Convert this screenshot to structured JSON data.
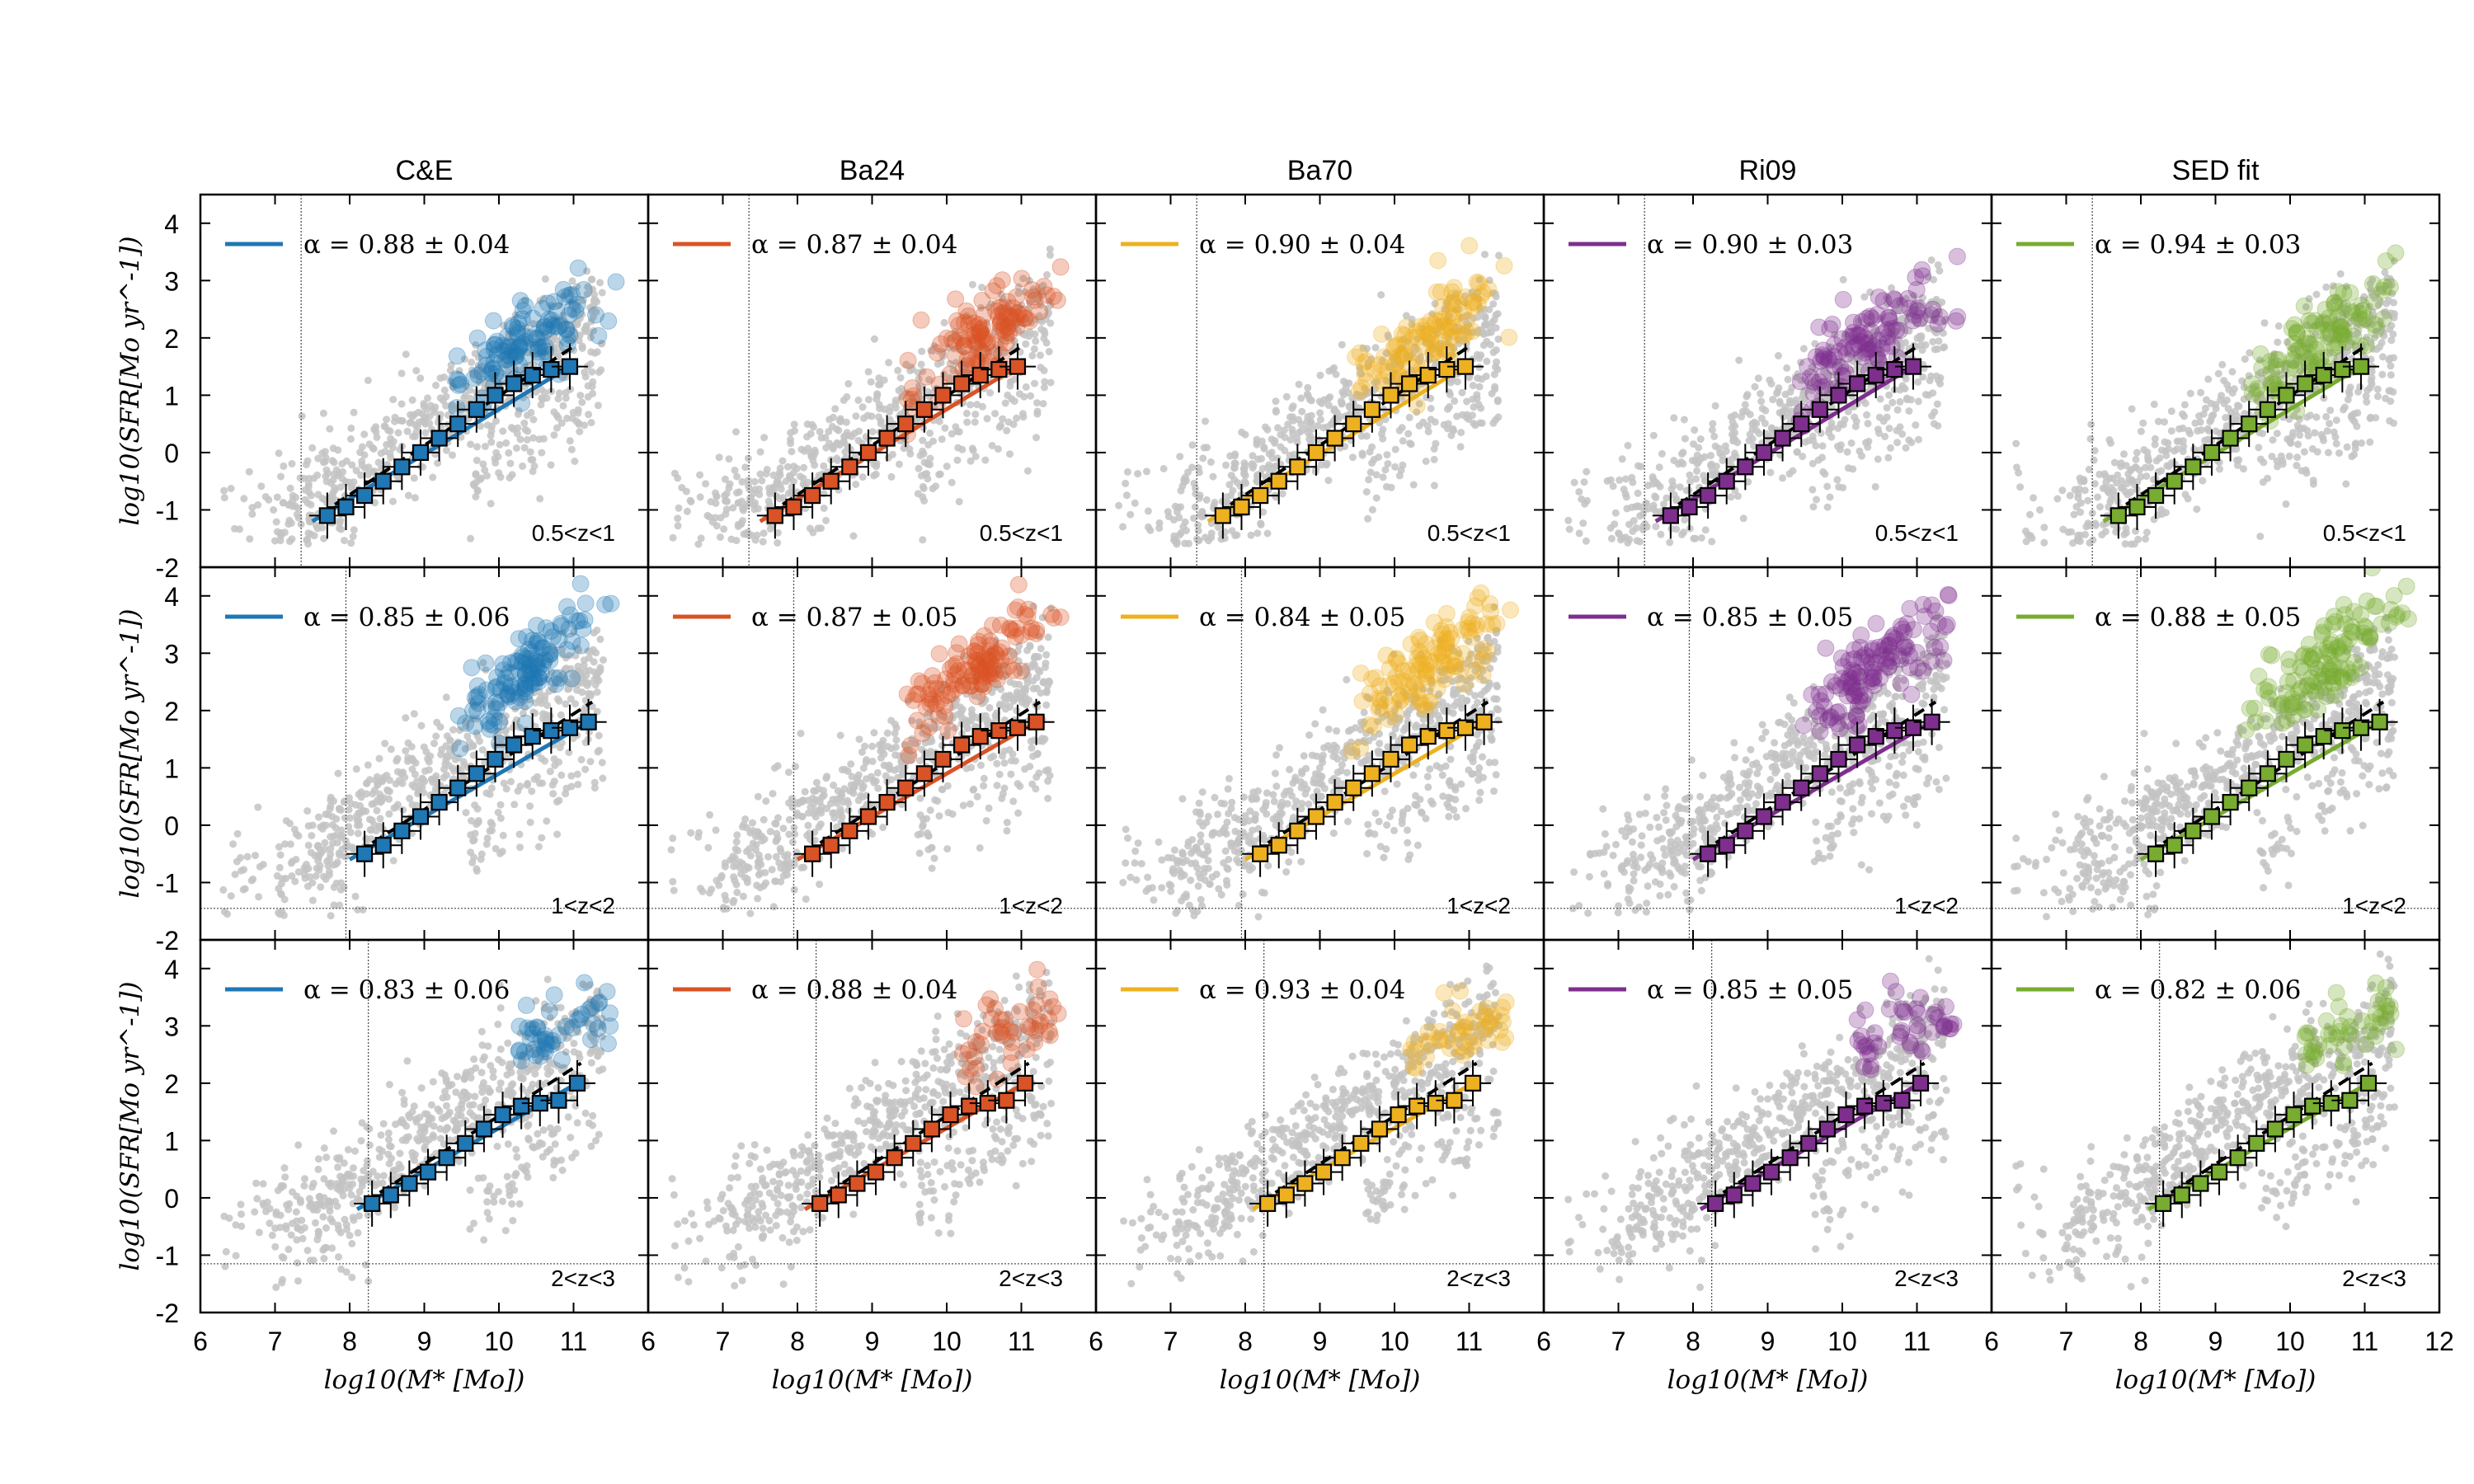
{
  "chart_data": {
    "type": "scatter",
    "title": "",
    "columns": [
      {
        "name": "C&E",
        "color": "#1f77b4"
      },
      {
        "name": "Ba24",
        "color": "#d95326"
      },
      {
        "name": "Ba70",
        "color": "#edb120"
      },
      {
        "name": "Ri09",
        "color": "#7e2f8e"
      },
      {
        "name": "SED fit",
        "color": "#77ac30"
      }
    ],
    "rows": [
      {
        "z_label": "0.5<z<1",
        "alpha": [
          "0.88",
          "0.87",
          "0.90",
          "0.90",
          "0.94"
        ],
        "alpha_err": [
          "0.04",
          "0.04",
          "0.04",
          "0.03",
          "0.03"
        ],
        "mass_limit": 7.35,
        "sfr_limit": null
      },
      {
        "z_label": "1<z<2",
        "alpha": [
          "0.85",
          "0.87",
          "0.84",
          "0.85",
          "0.88"
        ],
        "alpha_err": [
          "0.06",
          "0.05",
          "0.05",
          "0.05",
          "0.05"
        ],
        "mass_limit": 7.95,
        "sfr_limit": -1.45
      },
      {
        "z_label": "2<z<3",
        "alpha": [
          "0.83",
          "0.88",
          "0.93",
          "0.85",
          "0.82"
        ],
        "alpha_err": [
          "0.06",
          "0.04",
          "0.04",
          "0.05",
          "0.06"
        ],
        "mass_limit": 8.25,
        "sfr_limit": -1.15
      }
    ],
    "xlabel": "log10(M* [Mo])",
    "ylabel": "log10(SFR[Mo yr^-1])",
    "xlim": [
      6,
      12
    ],
    "ylim": [
      -2,
      4.5
    ],
    "xticks": [
      6,
      7,
      8,
      9,
      10,
      11,
      12
    ],
    "yticks": [
      -2,
      -1,
      0,
      1,
      2,
      3,
      4
    ],
    "alpha_prefix": "α = ",
    "alpha_pm": " ± ",
    "binned_medians": [
      {
        "x": [
          7.7,
          7.95,
          8.2,
          8.45,
          8.7,
          8.95,
          9.2,
          9.45,
          9.7,
          9.95,
          10.2,
          10.45,
          10.7,
          10.95
        ],
        "y": [
          -1.1,
          -0.95,
          -0.75,
          -0.5,
          -0.25,
          0.0,
          0.25,
          0.5,
          0.75,
          1.0,
          1.2,
          1.35,
          1.45,
          1.5
        ]
      },
      {
        "x": [
          8.2,
          8.45,
          8.7,
          8.95,
          9.2,
          9.45,
          9.7,
          9.95,
          10.2,
          10.45,
          10.7,
          10.95,
          11.2
        ],
        "y": [
          -0.5,
          -0.35,
          -0.1,
          0.15,
          0.4,
          0.65,
          0.9,
          1.15,
          1.4,
          1.55,
          1.65,
          1.7,
          1.8
        ]
      },
      {
        "x": [
          8.3,
          8.55,
          8.8,
          9.05,
          9.3,
          9.55,
          9.8,
          10.05,
          10.3,
          10.55,
          10.8,
          11.05
        ],
        "y": [
          -0.1,
          0.05,
          0.25,
          0.45,
          0.7,
          0.95,
          1.2,
          1.45,
          1.6,
          1.65,
          1.7,
          2.0
        ]
      }
    ]
  }
}
